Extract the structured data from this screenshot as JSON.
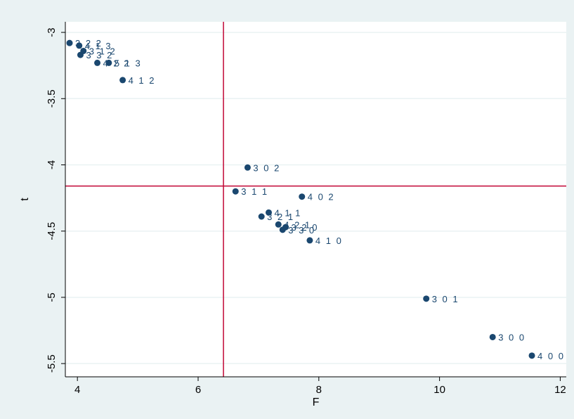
{
  "chart_data": {
    "type": "scatter",
    "xlabel": "F",
    "ylabel": "t",
    "xlim": [
      3.8,
      12.1
    ],
    "ylim": [
      -5.6,
      -2.92
    ],
    "xticks": [
      4,
      6,
      8,
      10,
      12
    ],
    "yticks": [
      -3,
      -3.5,
      -4,
      -4.5,
      -5,
      -5.5
    ],
    "grid": "horizontal",
    "legend": "none",
    "vline": 6.42,
    "hline": -4.16,
    "points": [
      {
        "label": "3 2 2",
        "x": 3.87,
        "y": -3.08
      },
      {
        "label": "4 1 3",
        "x": 4.03,
        "y": -3.1
      },
      {
        "label": "3 1 2",
        "x": 4.1,
        "y": -3.14
      },
      {
        "label": "3 3 2",
        "x": 4.05,
        "y": -3.17
      },
      {
        "label": "4 2 2",
        "x": 4.33,
        "y": -3.23
      },
      {
        "label": "5 1 3",
        "x": 4.52,
        "y": -3.23
      },
      {
        "label": "4 1 2",
        "x": 4.75,
        "y": -3.36
      },
      {
        "label": "3 0 2",
        "x": 6.82,
        "y": -4.02
      },
      {
        "label": "3 1 1",
        "x": 6.62,
        "y": -4.2
      },
      {
        "label": "4 0 2",
        "x": 7.72,
        "y": -4.24
      },
      {
        "label": "4 1 1",
        "x": 7.17,
        "y": -4.36
      },
      {
        "label": "3 2 1",
        "x": 7.05,
        "y": -4.39
      },
      {
        "label": "4 2 1",
        "x": 7.33,
        "y": -4.45
      },
      {
        "label": "3 2 0",
        "x": 7.45,
        "y": -4.47
      },
      {
        "label": "3 3 0",
        "x": 7.4,
        "y": -4.49
      },
      {
        "label": "4 1 0",
        "x": 7.85,
        "y": -4.57
      },
      {
        "label": "3 0 1",
        "x": 9.78,
        "y": -5.01
      },
      {
        "label": "3 0 0",
        "x": 10.88,
        "y": -5.3
      },
      {
        "label": "4 0 0",
        "x": 11.53,
        "y": -5.44
      }
    ],
    "colors": {
      "background": "#eaf2f3",
      "plot_bg": "#ffffff",
      "grid": "#eaf2f3",
      "marker": "#1a476f",
      "reference_line": "#c10534"
    }
  }
}
